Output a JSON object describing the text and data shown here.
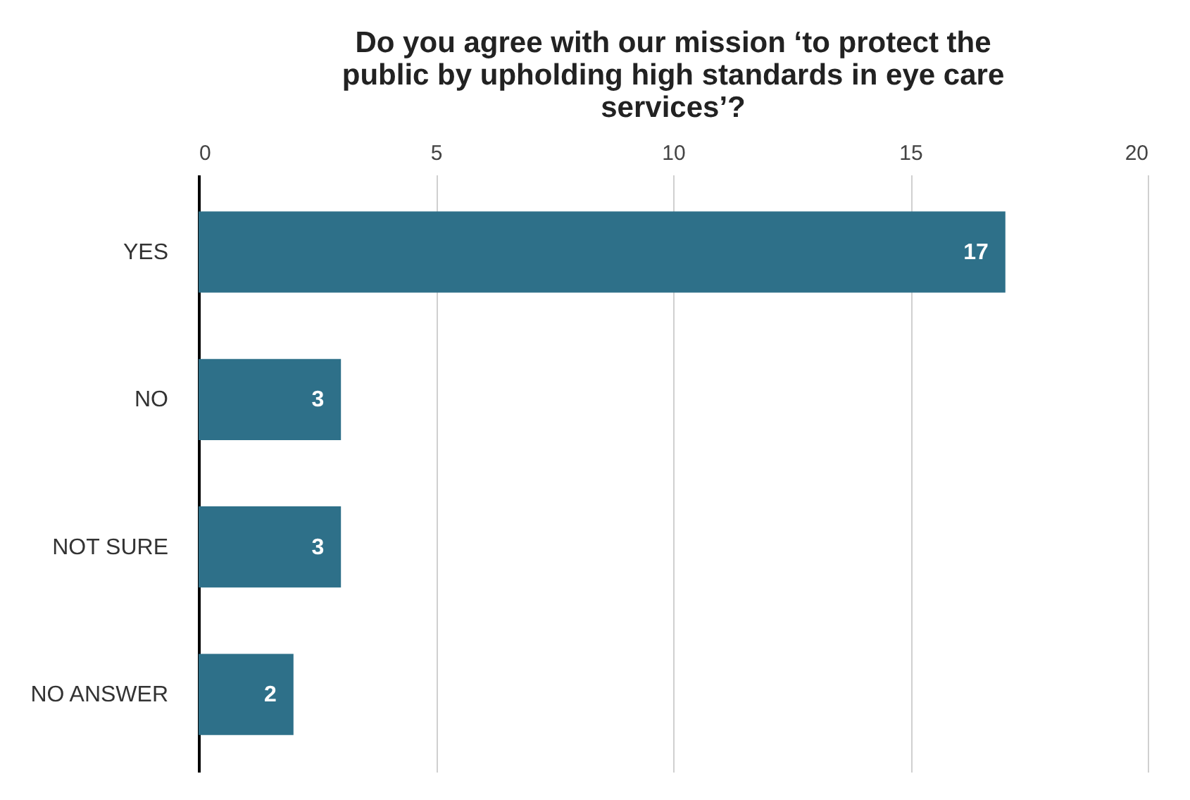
{
  "chart_data": {
    "type": "bar",
    "orientation": "horizontal",
    "title": "Do you agree with our mission ‘to protect the\npublic by upholding high standards in eye care\nservices’?",
    "categories": [
      "YES",
      "NO",
      "NOT SURE",
      "NO ANSWER"
    ],
    "values": [
      17,
      3,
      3,
      2
    ],
    "color": "#2e7089",
    "xlim": [
      0,
      20
    ],
    "xticks": [
      0,
      5,
      10,
      15,
      20
    ],
    "grid": "x",
    "data_labels": true
  }
}
